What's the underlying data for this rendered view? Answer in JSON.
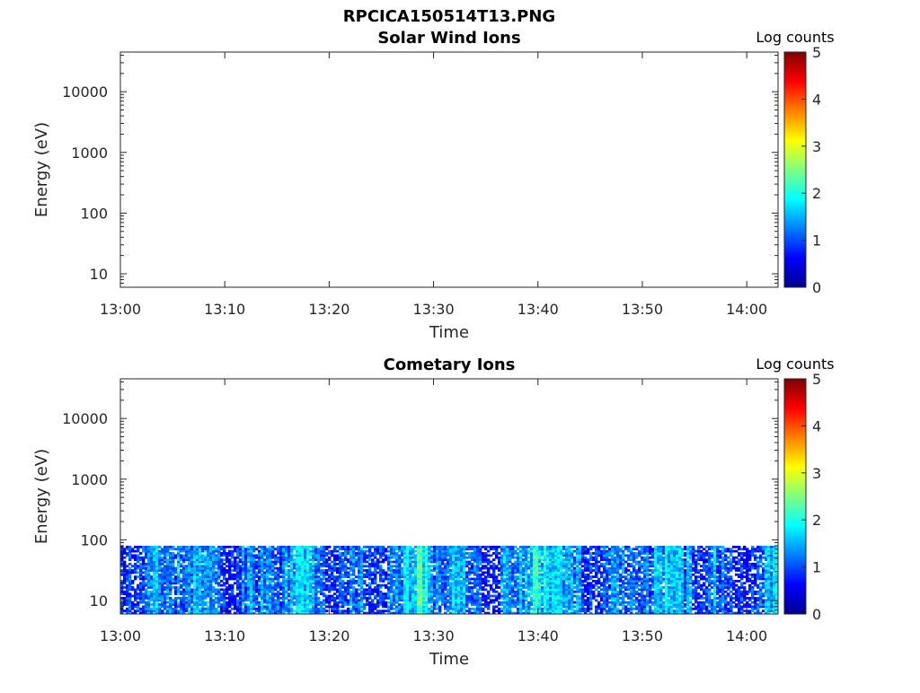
{
  "figure_title": "RPCICA150514T13.PNG",
  "chart_data": [
    {
      "type": "heatmap",
      "title": "Solar Wind Ions",
      "xlabel": "Time",
      "ylabel": "Energy (eV)",
      "x_ticks": [
        "13:00",
        "13:10",
        "13:20",
        "13:30",
        "13:40",
        "13:50",
        "14:00"
      ],
      "xlim": [
        "13:00",
        "14:03"
      ],
      "y_scale": "log",
      "y_ticks": [
        "10",
        "100",
        "1000",
        "10000"
      ],
      "ylim": [
        6,
        45000
      ],
      "colorbar": {
        "label": "Log counts",
        "ticks": [
          "0",
          "1",
          "2",
          "3",
          "4",
          "5"
        ],
        "range": [
          0,
          5
        ],
        "colormap": "jet"
      },
      "data_extent": null
    },
    {
      "type": "heatmap",
      "title": "Cometary Ions",
      "xlabel": "Time",
      "ylabel": "Energy (eV)",
      "x_ticks": [
        "13:00",
        "13:10",
        "13:20",
        "13:30",
        "13:40",
        "13:50",
        "14:00"
      ],
      "xlim": [
        "13:00",
        "14:03"
      ],
      "y_scale": "log",
      "y_ticks": [
        "10",
        "100",
        "1000",
        "10000"
      ],
      "ylim": [
        6,
        45000
      ],
      "colorbar": {
        "label": "Log counts",
        "ticks": [
          "0",
          "1",
          "2",
          "3",
          "4",
          "5"
        ],
        "range": [
          0,
          5
        ],
        "colormap": "jet"
      },
      "data_extent": {
        "energy_min": 6,
        "energy_max": 80,
        "time_start": "13:00",
        "time_end": "14:03"
      },
      "typical_log_counts": [
        0.5,
        2.0
      ],
      "peak_log_counts": 2.6,
      "enhanced_times": [
        "13:29",
        "13:40"
      ]
    }
  ]
}
